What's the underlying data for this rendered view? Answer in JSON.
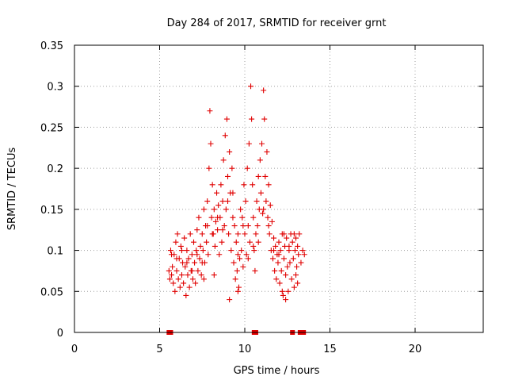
{
  "chart_data": {
    "type": "scatter",
    "title": "Day 284 of 2017, SRMTID for receiver grnt",
    "xlabel": "GPS time / hours",
    "ylabel": "SRMTID / TECUs",
    "xlim": [
      0,
      24
    ],
    "ylim": [
      0,
      0.35
    ],
    "x_ticks": [
      0,
      5,
      10,
      15,
      20
    ],
    "y_ticks": [
      0,
      0.05,
      0.1,
      0.15,
      0.2,
      0.25,
      0.3,
      0.35
    ],
    "x_tick_labels": [
      "0",
      "5",
      "10",
      "15",
      "20"
    ],
    "y_tick_labels": [
      "0",
      "0.05",
      "0.1",
      "0.15",
      "0.2",
      "0.25",
      "0.3",
      "0.35"
    ],
    "grid": true,
    "marker": "+",
    "color": "#e00000",
    "zero_markers_x": [
      5.55,
      5.65,
      10.55,
      10.65,
      12.8,
      13.25,
      13.35,
      13.45
    ],
    "series": [
      {
        "points": [
          [
            5.55,
            0.075
          ],
          [
            5.6,
            0.065
          ],
          [
            5.65,
            0.1
          ],
          [
            5.7,
            0.07
          ],
          [
            5.75,
            0.08
          ],
          [
            5.8,
            0.06
          ],
          [
            5.85,
            0.095
          ],
          [
            5.9,
            0.05
          ],
          [
            5.95,
            0.11
          ],
          [
            6.0,
            0.075
          ],
          [
            6.05,
            0.12
          ],
          [
            6.1,
            0.065
          ],
          [
            6.15,
            0.09
          ],
          [
            6.2,
            0.055
          ],
          [
            6.25,
            0.105
          ],
          [
            6.3,
            0.07
          ],
          [
            6.35,
            0.085
          ],
          [
            6.4,
            0.06
          ],
          [
            6.45,
            0.115
          ],
          [
            6.5,
            0.08
          ],
          [
            6.55,
            0.045
          ],
          [
            6.6,
            0.1
          ],
          [
            6.65,
            0.07
          ],
          [
            6.7,
            0.09
          ],
          [
            6.75,
            0.055
          ],
          [
            6.8,
            0.12
          ],
          [
            6.85,
            0.075
          ],
          [
            6.9,
            0.095
          ],
          [
            6.95,
            0.065
          ],
          [
            7.0,
            0.11
          ],
          [
            7.05,
            0.085
          ],
          [
            7.1,
            0.06
          ],
          [
            7.15,
            0.1
          ],
          [
            7.2,
            0.125
          ],
          [
            7.25,
            0.075
          ],
          [
            7.3,
            0.14
          ],
          [
            7.35,
            0.09
          ],
          [
            7.4,
            0.105
          ],
          [
            7.45,
            0.07
          ],
          [
            7.5,
            0.12
          ],
          [
            7.55,
            0.1
          ],
          [
            7.6,
            0.15
          ],
          [
            7.65,
            0.085
          ],
          [
            7.7,
            0.13
          ],
          [
            7.75,
            0.11
          ],
          [
            7.8,
            0.16
          ],
          [
            7.85,
            0.095
          ],
          [
            7.9,
            0.2
          ],
          [
            7.95,
            0.27
          ],
          [
            8.0,
            0.23
          ],
          [
            8.05,
            0.14
          ],
          [
            8.1,
            0.18
          ],
          [
            8.15,
            0.12
          ],
          [
            8.2,
            0.15
          ],
          [
            8.25,
            0.105
          ],
          [
            8.3,
            0.135
          ],
          [
            8.35,
            0.17
          ],
          [
            8.4,
            0.125
          ],
          [
            8.45,
            0.155
          ],
          [
            8.5,
            0.095
          ],
          [
            8.55,
            0.14
          ],
          [
            8.6,
            0.18
          ],
          [
            8.65,
            0.11
          ],
          [
            8.7,
            0.16
          ],
          [
            8.75,
            0.21
          ],
          [
            8.8,
            0.13
          ],
          [
            8.85,
            0.24
          ],
          [
            8.9,
            0.15
          ],
          [
            8.95,
            0.26
          ],
          [
            9.0,
            0.19
          ],
          [
            9.05,
            0.12
          ],
          [
            9.1,
            0.22
          ],
          [
            9.15,
            0.17
          ],
          [
            9.2,
            0.1
          ],
          [
            9.25,
            0.2
          ],
          [
            9.3,
            0.14
          ],
          [
            9.35,
            0.085
          ],
          [
            9.4,
            0.13
          ],
          [
            9.45,
            0.065
          ],
          [
            9.5,
            0.11
          ],
          [
            9.55,
            0.075
          ],
          [
            9.6,
            0.12
          ],
          [
            9.65,
            0.055
          ],
          [
            9.7,
            0.09
          ],
          [
            9.75,
            0.15
          ],
          [
            9.8,
            0.1
          ],
          [
            9.85,
            0.14
          ],
          [
            9.9,
            0.08
          ],
          [
            9.95,
            0.18
          ],
          [
            10.0,
            0.12
          ],
          [
            10.05,
            0.16
          ],
          [
            10.1,
            0.095
          ],
          [
            10.15,
            0.2
          ],
          [
            10.2,
            0.13
          ],
          [
            10.25,
            0.23
          ],
          [
            10.3,
            0.11
          ],
          [
            10.35,
            0.3
          ],
          [
            10.4,
            0.26
          ],
          [
            10.45,
            0.18
          ],
          [
            10.5,
            0.14
          ],
          [
            10.55,
            0.1
          ],
          [
            10.6,
            0.075
          ],
          [
            10.65,
            0.12
          ],
          [
            10.7,
            0.16
          ],
          [
            10.75,
            0.13
          ],
          [
            10.8,
            0.19
          ],
          [
            10.85,
            0.15
          ],
          [
            10.9,
            0.21
          ],
          [
            10.95,
            0.17
          ],
          [
            11.0,
            0.23
          ],
          [
            11.05,
            0.145
          ],
          [
            11.1,
            0.295
          ],
          [
            11.15,
            0.26
          ],
          [
            11.2,
            0.19
          ],
          [
            11.25,
            0.16
          ],
          [
            11.3,
            0.22
          ],
          [
            11.35,
            0.14
          ],
          [
            11.4,
            0.18
          ],
          [
            11.45,
            0.12
          ],
          [
            11.5,
            0.155
          ],
          [
            11.55,
            0.1
          ],
          [
            11.6,
            0.135
          ],
          [
            11.65,
            0.09
          ],
          [
            11.7,
            0.115
          ],
          [
            11.75,
            0.075
          ],
          [
            11.8,
            0.105
          ],
          [
            11.85,
            0.065
          ],
          [
            11.9,
            0.095
          ],
          [
            11.95,
            0.085
          ],
          [
            12.0,
            0.11
          ],
          [
            12.05,
            0.06
          ],
          [
            12.1,
            0.1
          ],
          [
            12.15,
            0.075
          ],
          [
            12.2,
            0.12
          ],
          [
            12.25,
            0.045
          ],
          [
            12.3,
            0.09
          ],
          [
            12.35,
            0.105
          ],
          [
            12.4,
            0.07
          ],
          [
            12.45,
            0.115
          ],
          [
            12.5,
            0.08
          ],
          [
            12.55,
            0.05
          ],
          [
            12.6,
            0.1
          ],
          [
            12.65,
            0.085
          ],
          [
            12.7,
            0.12
          ],
          [
            12.75,
            0.065
          ],
          [
            12.8,
            0.11
          ],
          [
            12.85,
            0.09
          ],
          [
            12.9,
            0.055
          ],
          [
            12.95,
            0.1
          ],
          [
            13.0,
            0.115
          ],
          [
            13.05,
            0.08
          ],
          [
            13.1,
            0.105
          ],
          [
            13.15,
            0.095
          ],
          [
            13.2,
            0.12
          ],
          [
            13.3,
            0.085
          ],
          [
            13.4,
            0.1
          ],
          [
            13.5,
            0.095
          ],
          [
            5.7,
            0.095
          ],
          [
            6.0,
            0.09
          ],
          [
            6.3,
            0.1
          ],
          [
            6.6,
            0.085
          ],
          [
            6.9,
            0.075
          ],
          [
            7.2,
            0.095
          ],
          [
            7.5,
            0.085
          ],
          [
            7.8,
            0.13
          ],
          [
            8.1,
            0.12
          ],
          [
            8.4,
            0.14
          ],
          [
            8.7,
            0.125
          ],
          [
            9.0,
            0.16
          ],
          [
            9.3,
            0.17
          ],
          [
            9.6,
            0.095
          ],
          [
            9.9,
            0.13
          ],
          [
            10.2,
            0.09
          ],
          [
            10.5,
            0.105
          ],
          [
            10.8,
            0.11
          ],
          [
            11.1,
            0.15
          ],
          [
            11.4,
            0.13
          ],
          [
            11.7,
            0.1
          ],
          [
            12.0,
            0.095
          ],
          [
            12.3,
            0.12
          ],
          [
            12.6,
            0.105
          ],
          [
            12.9,
            0.12
          ],
          [
            7.6,
            0.065
          ],
          [
            8.2,
            0.07
          ],
          [
            9.1,
            0.04
          ],
          [
            9.6,
            0.05
          ],
          [
            12.4,
            0.04
          ],
          [
            12.2,
            0.05
          ],
          [
            13.0,
            0.07
          ],
          [
            13.1,
            0.06
          ]
        ]
      }
    ]
  }
}
